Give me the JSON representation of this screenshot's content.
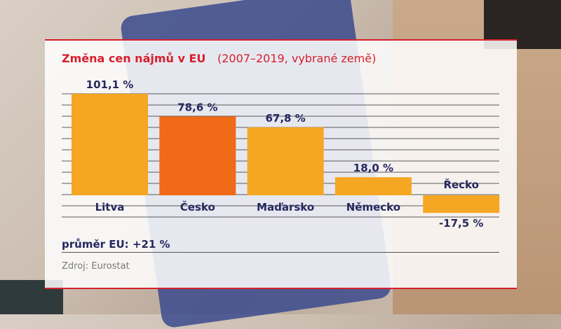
{
  "header": {
    "title": "Změna cen nájmů v EU",
    "subtitle": "(2007–2019, vybrané země)"
  },
  "chart_data": {
    "type": "bar",
    "categories": [
      "Litva",
      "Česko",
      "Maďarsko",
      "Německo",
      "Řecko"
    ],
    "values": [
      101.1,
      78.6,
      67.8,
      18.0,
      -17.5
    ],
    "value_labels": [
      "101,1 %",
      "78,6 %",
      "67,8 %",
      "18,0 %",
      "-17,5 %"
    ],
    "highlight_index": 1,
    "ylim": [
      -17.5,
      101.1
    ],
    "grid": true,
    "colors": {
      "bar": "#f5a623",
      "highlight": "#f06a17",
      "grid": "#5a5a5a",
      "label": "#26285f"
    }
  },
  "footer": {
    "average": "průměr EU: +21 %",
    "source": "Zdroj: Eurostat"
  },
  "colors": {
    "accent": "#d81f2a",
    "text": "#26285f"
  }
}
